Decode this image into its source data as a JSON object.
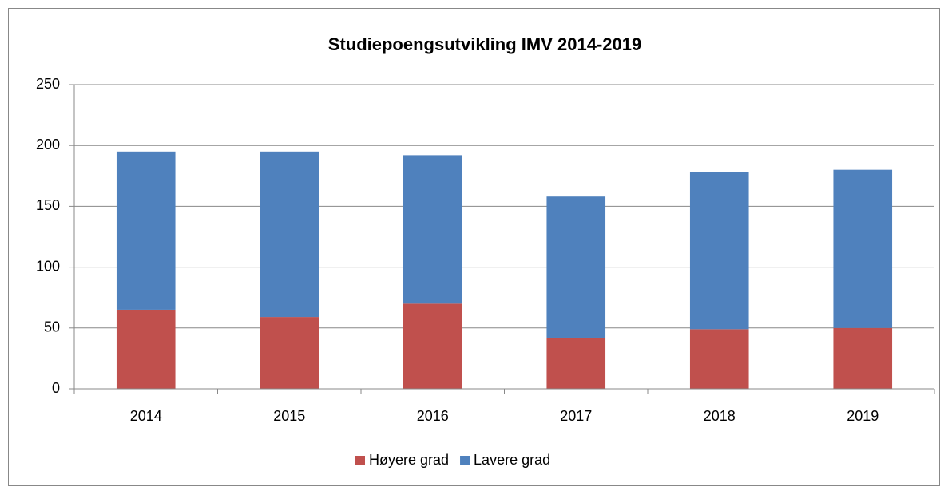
{
  "chart_data": {
    "type": "bar",
    "stacked": true,
    "title": "Studiepoengsutvikling IMV 2014-2019",
    "categories": [
      "2014",
      "2015",
      "2016",
      "2017",
      "2018",
      "2019"
    ],
    "series": [
      {
        "name": "Høyere grad",
        "color": "#c0504d",
        "values": [
          65,
          59,
          70,
          42,
          49,
          50
        ]
      },
      {
        "name": "Lavere grad",
        "color": "#4f81bd",
        "values": [
          130,
          136,
          122,
          116,
          129,
          130
        ]
      }
    ],
    "ylim": [
      0,
      250
    ],
    "yticks": [
      0,
      50,
      100,
      150,
      200,
      250
    ],
    "grid": true,
    "legend": "bottom"
  }
}
